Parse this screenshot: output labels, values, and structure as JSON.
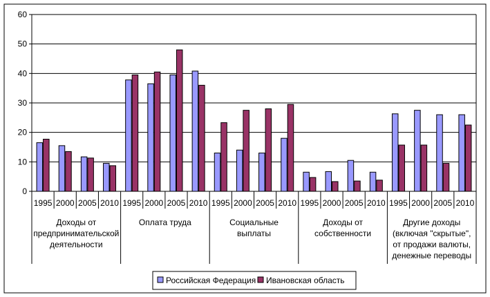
{
  "chart_data": {
    "type": "bar",
    "ylim": [
      0,
      60
    ],
    "yticks": [
      "0",
      "10",
      "20",
      "30",
      "40",
      "50",
      "60"
    ],
    "grid": true,
    "legend_position": "bottom",
    "groups": [
      {
        "label_lines": [
          "Доходы от",
          "предпринимательской",
          "деятельности"
        ],
        "years": [
          "1995",
          "2000",
          "2005",
          "2010"
        ]
      },
      {
        "label_lines": [
          "Оплата труда"
        ],
        "years": [
          "1995",
          "2000",
          "2005",
          "2010"
        ]
      },
      {
        "label_lines": [
          "Социальные",
          "выплаты"
        ],
        "years": [
          "1995",
          "2000",
          "2005",
          "2010"
        ]
      },
      {
        "label_lines": [
          "Доходы от",
          "собственности"
        ],
        "years": [
          "1995",
          "2000",
          "2005",
          "2010"
        ]
      },
      {
        "label_lines": [
          "Другие доходы",
          "(включая \"скрытые\",",
          "от продажи валюты,",
          "денежные переводы"
        ],
        "years": [
          "1995",
          "2000",
          "2005",
          "2010"
        ]
      }
    ],
    "series": [
      {
        "name": "Российская Федерация",
        "color": "#9999FF",
        "values": [
          16.5,
          15.5,
          11.7,
          9.5,
          37.8,
          36.5,
          39.5,
          40.8,
          13.0,
          14.0,
          13.0,
          18.0,
          6.5,
          6.7,
          10.5,
          6.5,
          26.3,
          27.5,
          26.0,
          26.0
        ]
      },
      {
        "name": "Ивановская область",
        "color": "#993366",
        "values": [
          17.7,
          13.5,
          11.3,
          8.7,
          39.5,
          40.5,
          48.0,
          36.0,
          23.3,
          27.5,
          28.0,
          29.5,
          4.7,
          3.3,
          3.5,
          3.8,
          15.7,
          15.7,
          9.5,
          22.5
        ]
      }
    ]
  }
}
